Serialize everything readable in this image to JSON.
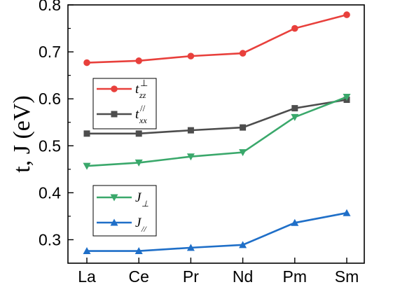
{
  "chart_data": {
    "type": "line",
    "categories": [
      "La",
      "Ce",
      "Pr",
      "Nd",
      "Pm",
      "Sm"
    ],
    "ylabel": "t, J (eV)",
    "ylim": [
      0.25,
      0.8
    ],
    "yticks": [
      0.3,
      0.4,
      0.5,
      0.6,
      0.7,
      0.8
    ],
    "ytick_labels": [
      "0.3",
      "0.4",
      "0.5",
      "0.6",
      "0.7",
      "0.8"
    ],
    "grid": false,
    "series": [
      {
        "name": "t_zz^⊥",
        "legend_base": "t",
        "legend_sub": "zz",
        "legend_sup": "⊥",
        "color": "#e8403c",
        "marker": "circle",
        "values": [
          0.677,
          0.681,
          0.691,
          0.697,
          0.75,
          0.779
        ]
      },
      {
        "name": "t_xx^//",
        "legend_base": "t",
        "legend_sub": "xx",
        "legend_sup": "//",
        "color": "#4d4d4d",
        "marker": "square",
        "values": [
          0.526,
          0.526,
          0.533,
          0.539,
          0.58,
          0.598
        ]
      },
      {
        "name": "J_⊥",
        "legend_base": "J",
        "legend_sub": "⊥",
        "legend_sup": "",
        "color": "#3aa86b",
        "marker": "triangle-down",
        "values": [
          0.457,
          0.464,
          0.477,
          0.486,
          0.561,
          0.604
        ]
      },
      {
        "name": "J_//",
        "legend_base": "J",
        "legend_sub": "//",
        "legend_sup": "",
        "color": "#1f6fc8",
        "marker": "triangle-up",
        "values": [
          0.276,
          0.276,
          0.283,
          0.289,
          0.336,
          0.357
        ]
      }
    ],
    "legends": [
      {
        "placement": "middle-left",
        "series": [
          0,
          1
        ]
      },
      {
        "placement": "bottom-left",
        "series": [
          2,
          3
        ]
      }
    ]
  }
}
